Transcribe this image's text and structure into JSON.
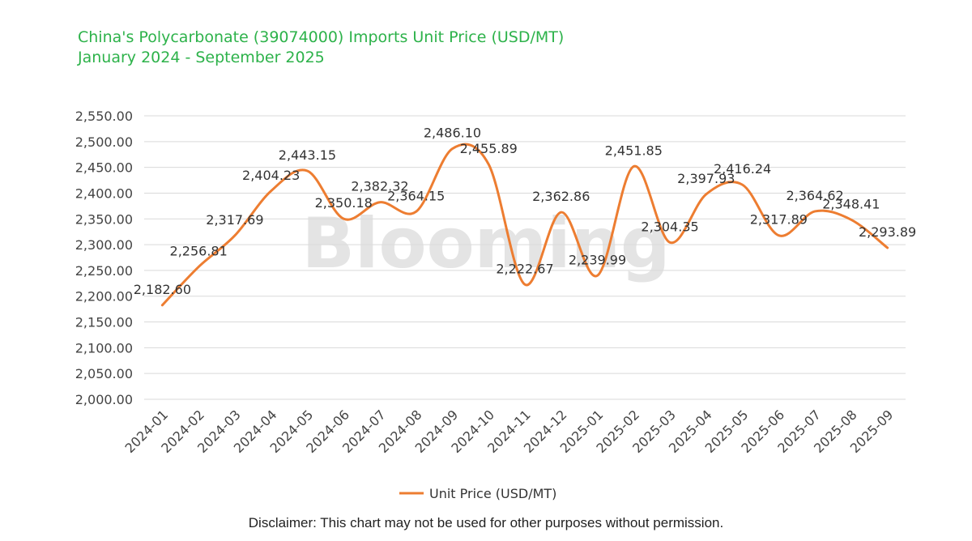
{
  "title_line1": "China's Polycarbonate (39074000) Imports Unit Price (USD/MT)",
  "title_line2": "January 2024 - September 2025",
  "watermark": "Blooming",
  "disclaimer": "Disclaimer: This chart may not be used for other purposes without permission.",
  "colors": {
    "title": "#2db24a",
    "series": "#ed7d31",
    "grid": "#d9d9d9"
  },
  "chart_data": {
    "type": "line",
    "title": "China's Polycarbonate (39074000) Imports Unit Price (USD/MT)",
    "subtitle": "January 2024 - September 2025",
    "xlabel": "",
    "ylabel": "",
    "ylim": [
      2000,
      2550
    ],
    "yticks": [
      "2,000.00",
      "2,050.00",
      "2,100.00",
      "2,150.00",
      "2,200.00",
      "2,250.00",
      "2,300.00",
      "2,350.00",
      "2,400.00",
      "2,450.00",
      "2,500.00",
      "2,550.00"
    ],
    "grid": true,
    "legend_position": "bottom",
    "categories": [
      "2024-01",
      "2024-02",
      "2024-03",
      "2024-04",
      "2024-05",
      "2024-06",
      "2024-07",
      "2024-08",
      "2024-09",
      "2024-10",
      "2024-11",
      "2024-12",
      "2025-01",
      "2025-02",
      "2025-03",
      "2025-04",
      "2025-05",
      "2025-06",
      "2025-07",
      "2025-08",
      "2025-09"
    ],
    "series": [
      {
        "name": "Unit Price (USD/MT)",
        "values": [
          2182.6,
          2256.81,
          2317.69,
          2404.23,
          2443.15,
          2350.18,
          2382.32,
          2364.15,
          2486.1,
          2455.89,
          2222.67,
          2362.86,
          2239.99,
          2451.85,
          2304.35,
          2397.93,
          2416.24,
          2317.89,
          2364.62,
          2348.41,
          2293.89
        ],
        "labels": [
          "2,182.60",
          "2,256.81",
          "2,317.69",
          "2,404.23",
          "2,443.15",
          "2,350.18",
          "2,382.32",
          "2,364.15",
          "2,486.10",
          "2,455.89",
          "2,222.67",
          "2,362.86",
          "2,239.99",
          "2,451.85",
          "2,304.35",
          "2,397.93",
          "2,416.24",
          "2,317.89",
          "2,364.62",
          "2,348.41",
          "2,293.89"
        ]
      }
    ]
  }
}
